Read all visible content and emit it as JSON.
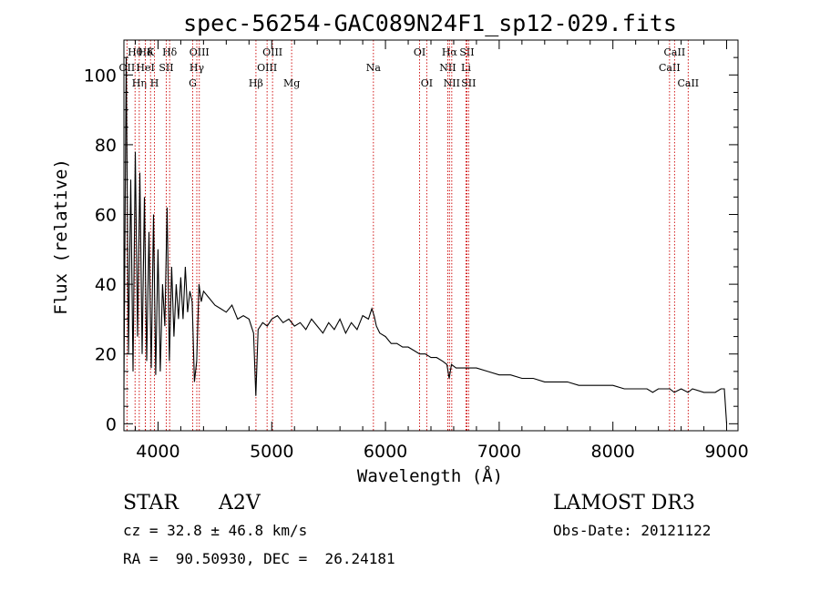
{
  "chart_data": {
    "type": "line",
    "title": "spec-56254-GAC089N24F1_sp12-029.fits",
    "xlabel": "Wavelength (Å)",
    "ylabel": "Flux (relative)",
    "xlim": [
      3700,
      9100
    ],
    "ylim": [
      -2,
      110
    ],
    "xticks": [
      4000,
      5000,
      6000,
      7000,
      8000,
      9000
    ],
    "xtick_labels": [
      "4000",
      "5000",
      "6000",
      "7000",
      "8000",
      "9000"
    ],
    "yticks": [
      0,
      20,
      40,
      60,
      80,
      100
    ],
    "ytick_labels": [
      "0",
      "20",
      "40",
      "60",
      "80",
      "100"
    ],
    "line_color": "#000000",
    "marker_color": "#cc0000",
    "lines": [
      {
        "label": "OII",
        "wavelength": 3727,
        "row": 2
      },
      {
        "label": "Hθ",
        "wavelength": 3798,
        "row": 1
      },
      {
        "label": "Hη",
        "wavelength": 3835,
        "row": 3
      },
      {
        "label": "Hδ",
        "wavelength": 3889,
        "row": 1
      },
      {
        "label": "HeI",
        "wavelength": 3889,
        "row": 2
      },
      {
        "label": "K",
        "wavelength": 3934,
        "row": 1
      },
      {
        "label": "H",
        "wavelength": 3969,
        "row": 3
      },
      {
        "label": "SII",
        "wavelength": 4072,
        "row": 2
      },
      {
        "label": "Hδ",
        "wavelength": 4102,
        "row": 1
      },
      {
        "label": "G",
        "wavelength": 4305,
        "row": 3
      },
      {
        "label": "Hγ",
        "wavelength": 4341,
        "row": 2
      },
      {
        "label": "OIII",
        "wavelength": 4363,
        "row": 1
      },
      {
        "label": "Hβ",
        "wavelength": 4861,
        "row": 3
      },
      {
        "label": "OIII",
        "wavelength": 4959,
        "row": 2
      },
      {
        "label": "OIII",
        "wavelength": 5007,
        "row": 1
      },
      {
        "label": "Mg",
        "wavelength": 5175,
        "row": 3
      },
      {
        "label": "Na",
        "wavelength": 5894,
        "row": 2
      },
      {
        "label": "OI",
        "wavelength": 6300,
        "row": 1
      },
      {
        "label": "OI",
        "wavelength": 6363,
        "row": 3
      },
      {
        "label": "NII",
        "wavelength": 6548,
        "row": 2
      },
      {
        "label": "Hα",
        "wavelength": 6563,
        "row": 1
      },
      {
        "label": "NII",
        "wavelength": 6583,
        "row": 3
      },
      {
        "label": "Li",
        "wavelength": 6708,
        "row": 2
      },
      {
        "label": "SII",
        "wavelength": 6716,
        "row": 1
      },
      {
        "label": "SII",
        "wavelength": 6731,
        "row": 3
      },
      {
        "label": "CaII",
        "wavelength": 8498,
        "row": 2
      },
      {
        "label": "CaII",
        "wavelength": 8542,
        "row": 1
      },
      {
        "label": "CaII",
        "wavelength": 8662,
        "row": 3
      }
    ],
    "spectrum": {
      "x": [
        3700,
        3720,
        3740,
        3760,
        3780,
        3800,
        3820,
        3840,
        3860,
        3880,
        3900,
        3920,
        3940,
        3960,
        3980,
        4000,
        4020,
        4040,
        4060,
        4080,
        4100,
        4120,
        4140,
        4160,
        4180,
        4200,
        4220,
        4240,
        4260,
        4280,
        4300,
        4320,
        4340,
        4360,
        4380,
        4400,
        4450,
        4500,
        4550,
        4600,
        4650,
        4700,
        4750,
        4800,
        4840,
        4860,
        4880,
        4920,
        4960,
        5000,
        5050,
        5100,
        5150,
        5200,
        5250,
        5300,
        5350,
        5400,
        5450,
        5500,
        5550,
        5600,
        5650,
        5700,
        5750,
        5800,
        5850,
        5880,
        5900,
        5920,
        5950,
        6000,
        6050,
        6100,
        6150,
        6200,
        6250,
        6300,
        6350,
        6400,
        6450,
        6500,
        6540,
        6560,
        6580,
        6620,
        6700,
        6800,
        6900,
        7000,
        7100,
        7200,
        7300,
        7400,
        7500,
        7600,
        7700,
        7800,
        7900,
        8000,
        8100,
        8200,
        8300,
        8350,
        8400,
        8500,
        8540,
        8600,
        8660,
        8700,
        8800,
        8900,
        8950,
        8980,
        9000
      ],
      "y": [
        10,
        105,
        20,
        70,
        15,
        78,
        25,
        72,
        20,
        65,
        18,
        55,
        16,
        60,
        14,
        50,
        15,
        40,
        28,
        62,
        18,
        45,
        25,
        40,
        30,
        42,
        30,
        45,
        32,
        38,
        35,
        12,
        18,
        40,
        35,
        38,
        36,
        34,
        33,
        32,
        34,
        30,
        31,
        30,
        26,
        8,
        27,
        29,
        28,
        30,
        31,
        29,
        30,
        28,
        29,
        27,
        30,
        28,
        26,
        29,
        27,
        30,
        26,
        29,
        27,
        31,
        30,
        33,
        31,
        28,
        26,
        25,
        23,
        23,
        22,
        22,
        21,
        20,
        20,
        19,
        19,
        18,
        17,
        13,
        17,
        16,
        16,
        16,
        15,
        14,
        14,
        13,
        13,
        12,
        12,
        12,
        11,
        11,
        11,
        11,
        10,
        10,
        10,
        9,
        10,
        10,
        9,
        10,
        9,
        10,
        9,
        9,
        10,
        10,
        0
      ]
    }
  },
  "info": {
    "object_type": "STAR",
    "spectral_class": "A2V",
    "cz": "cz = 32.8 ± 46.8 km/s",
    "coords": "RA =  90.50930, DEC =  26.24181",
    "survey": "LAMOST DR3",
    "obs_date": "Obs-Date: 20121122"
  }
}
